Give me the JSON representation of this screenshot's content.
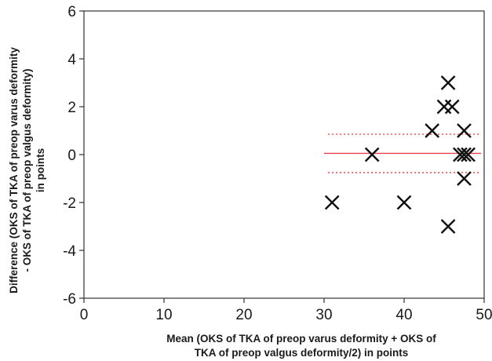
{
  "chart_data": {
    "type": "scatter",
    "xlabel": [
      "Mean (OKS of TKA of preop varus deformity + OKS of",
      "TKA of preop valgus deformity/2) in points"
    ],
    "ylabel": [
      "Difference (OKS of TKA of preop varus deformity",
      "- OKS of TKA of preop valgus deformity)",
      "in points"
    ],
    "xlim": [
      0,
      50
    ],
    "ylim": [
      -6,
      6
    ],
    "xticks": [
      "0",
      "10",
      "20",
      "30",
      "40",
      "50"
    ],
    "yticks": [
      "-6",
      "-4",
      "-2",
      "0",
      "2",
      "4",
      "6"
    ],
    "grid": false,
    "marker": "x",
    "points": [
      {
        "x": 31,
        "y": -2
      },
      {
        "x": 36,
        "y": 0
      },
      {
        "x": 40,
        "y": -2
      },
      {
        "x": 43.5,
        "y": 1
      },
      {
        "x": 45,
        "y": 2
      },
      {
        "x": 45.5,
        "y": 3
      },
      {
        "x": 45.5,
        "y": -3
      },
      {
        "x": 46,
        "y": 2
      },
      {
        "x": 47,
        "y": 0
      },
      {
        "x": 47.5,
        "y": 1
      },
      {
        "x": 47.5,
        "y": -1
      },
      {
        "x": 47.5,
        "y": 0
      },
      {
        "x": 48,
        "y": 0
      }
    ],
    "mean_line": {
      "y": 0.05,
      "x_range": [
        30,
        50
      ],
      "color": "#e8424a",
      "style": "solid"
    },
    "limit_lines": [
      {
        "y": 0.85,
        "x_range": [
          30.5,
          50
        ],
        "color": "#e8424a",
        "style": "dotted"
      },
      {
        "y": -0.75,
        "x_range": [
          30.5,
          50
        ],
        "color": "#e8424a",
        "style": "dotted"
      }
    ],
    "marker_color": "#111111"
  }
}
